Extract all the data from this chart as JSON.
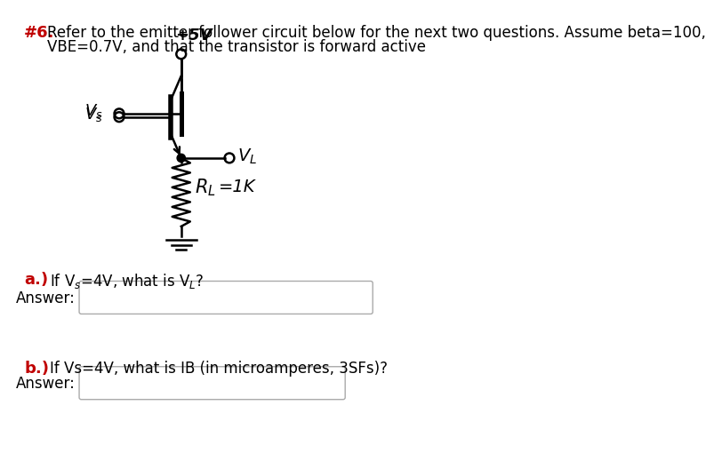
{
  "title_number": "#6.",
  "title_text": "Refer to the emitter follower circuit below for the next two questions. Assume beta=100,",
  "title_text2": "VBE=0.7V, and that the transistor is forward active",
  "vcc_label": "+5V",
  "vs_label": "$V_s$",
  "vl_label": "$V_L$",
  "rl_label": "$R_L$",
  "rl_value": "=1K",
  "qa_label": "a.)",
  "qa_question": "If V$_s$=4V, what is V$_L$?",
  "answer_label": "Answer:",
  "qb_label": "b.)",
  "qb_question": "If Vs=4V, what is IB (in microamperes, 3SFs)?",
  "answer_label2": "Answer:",
  "bg_color": "#ffffff",
  "text_color": "#000000",
  "highlight_color": "#c00000",
  "circuit_color": "#000000"
}
